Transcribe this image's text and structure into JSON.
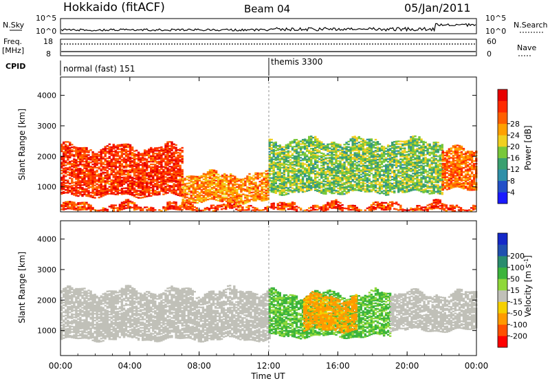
{
  "header": {
    "station": "Hokkaido (fitACF)",
    "beam": "Beam 04",
    "date": "05/Jan/2011"
  },
  "top_panels": {
    "nsky_label": "N.Sky",
    "nsky_ticks": [
      "10^5",
      "10^0"
    ],
    "nsearch_label": "N.Search",
    "nsearch_ticks": [
      "10^5",
      "10^0"
    ],
    "freq_label_1": "Freq.",
    "freq_label_2": "[MHz]",
    "freq_ticks": [
      "18",
      "8"
    ],
    "nave_label": "Nave",
    "nave_ticks": [
      "60",
      "0"
    ],
    "cpid_label": "CPID",
    "cpid_modes": [
      {
        "label": "normal (fast) 151",
        "start_hour": 0
      },
      {
        "label": "themis 3300",
        "start_hour": 12
      }
    ]
  },
  "chart_data": [
    {
      "type": "heatmap",
      "name": "power",
      "ylabel": "Slant Range [km]",
      "xlabel": "",
      "xlim_hours": [
        0,
        24
      ],
      "ylim": [
        180,
        4600
      ],
      "yticks": [
        1000,
        2000,
        3000,
        4000
      ],
      "colorbar": {
        "label": "Power [dB]",
        "ticks": [
          "4",
          "8",
          "12",
          "16",
          "20",
          "24",
          "28"
        ],
        "colors": [
          "#1a1aff",
          "#2250c8",
          "#2f8fa8",
          "#3aa070",
          "#78c83a",
          "#f0d020",
          "#ffa000",
          "#ff6000",
          "#ff2a00",
          "#e80000"
        ]
      },
      "features": [
        {
          "band": "near-range ground scatter",
          "hours": [
            0,
            24
          ],
          "range_km": [
            200,
            400
          ],
          "level_db": 26
        },
        {
          "band": "main ionospheric echoes",
          "hours": [
            0,
            7
          ],
          "range_km": [
            700,
            2300
          ],
          "level_db": 27
        },
        {
          "band": "main ionospheric echoes",
          "hours": [
            7,
            12
          ],
          "range_km": [
            500,
            1400
          ],
          "level_db": 22
        },
        {
          "band": "main ionospheric echoes",
          "hours": [
            12,
            22
          ],
          "range_km": [
            800,
            2500
          ],
          "level_db": 14
        },
        {
          "band": "main ionospheric echoes",
          "hours": [
            22,
            24
          ],
          "range_km": [
            900,
            2200
          ],
          "level_db": 24
        }
      ]
    },
    {
      "type": "heatmap",
      "name": "velocity",
      "ylabel": "Slant Range [km]",
      "xlabel": "Time UT",
      "xlim_hours": [
        0,
        24
      ],
      "xticks": [
        "00:00",
        "04:00",
        "08:00",
        "12:00",
        "16:00",
        "20:00",
        "00:00"
      ],
      "ylim": [
        180,
        4600
      ],
      "yticks": [
        1000,
        2000,
        3000,
        4000
      ],
      "colorbar": {
        "label": "Velocity [m s",
        "label_sup": "-1",
        "label_end": "]",
        "ticks": [
          "-200",
          "-100",
          "-50",
          "-15",
          "15",
          "50",
          "100",
          "200"
        ],
        "colors": [
          "#ff0000",
          "#ff5000",
          "#ff9a00",
          "#f5d000",
          "#c0c0b8",
          "#8fd83a",
          "#3cb43c",
          "#2a8c6e",
          "#2050b0",
          "#1428c8"
        ],
        "ground_scatter_color": "#c0c0b8"
      },
      "features": [
        {
          "band": "ground scatter (grey)",
          "hours": [
            0,
            12
          ],
          "range_km": [
            700,
            2300
          ],
          "velocity_ms": 0
        },
        {
          "band": "positive flow",
          "hours": [
            12,
            19
          ],
          "range_km": [
            800,
            2200
          ],
          "velocity_ms": 60
        },
        {
          "band": "negative flow streaks",
          "hours": [
            14,
            17
          ],
          "range_km": [
            1000,
            2100
          ],
          "velocity_ms": -70
        },
        {
          "band": "ground scatter (grey)",
          "hours": [
            19,
            24
          ],
          "range_km": [
            1000,
            2200
          ],
          "velocity_ms": 0
        }
      ]
    }
  ]
}
